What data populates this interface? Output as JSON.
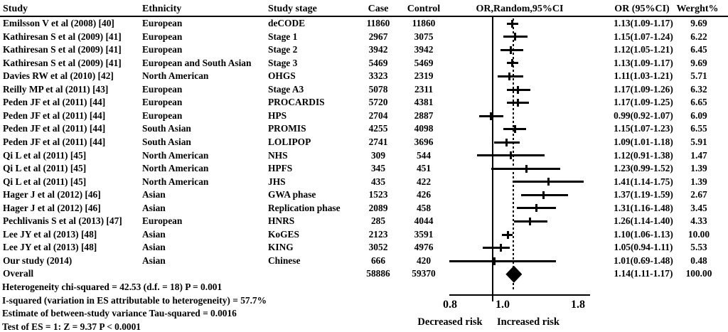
{
  "header": {
    "study": "Study",
    "ethnicity": "Ethnicity",
    "stage": "Study stage",
    "case": "Case",
    "control": "Control",
    "plot": "OR,Random,95%CI",
    "or": "OR (95%CI)",
    "weight": "Werght%"
  },
  "rows": [
    {
      "study": "Emilsson V et al (2008) [40]",
      "ethnicity": "European",
      "stage": "deCODE",
      "case": "11860",
      "control": "11860",
      "or": 1.13,
      "lo": 1.09,
      "hi": 1.17,
      "or_text": "1.13(1.09-1.17)",
      "weight": "9.69"
    },
    {
      "study": "Kathiresan S et al (2009) [41]",
      "ethnicity": "European",
      "stage": "Stage 1",
      "case": "2967",
      "control": "3075",
      "or": 1.15,
      "lo": 1.07,
      "hi": 1.24,
      "or_text": "1.15(1.07-1.24)",
      "weight": "6.22"
    },
    {
      "study": "Kathiresan S et al (2009) [41]",
      "ethnicity": "European",
      "stage": "Stage 2",
      "case": "3942",
      "control": "3942",
      "or": 1.12,
      "lo": 1.05,
      "hi": 1.21,
      "or_text": "1.12(1.05-1.21)",
      "weight": "6.45"
    },
    {
      "study": "Kathiresan S et al (2009) [41]",
      "ethnicity": "European and South Asian",
      "stage": "Stage 3",
      "case": "5469",
      "control": "5469",
      "or": 1.13,
      "lo": 1.09,
      "hi": 1.17,
      "or_text": "1.13(1.09-1.17)",
      "weight": "9.69"
    },
    {
      "study": "Davies RW et al (2010) [42]",
      "ethnicity": "North American",
      "stage": "OHGS",
      "case": "3323",
      "control": "2319",
      "or": 1.11,
      "lo": 1.03,
      "hi": 1.21,
      "or_text": "1.11(1.03-1.21)",
      "weight": "5.71"
    },
    {
      "study": "Reilly MP et al (2011) [43]",
      "ethnicity": "European",
      "stage": "Stage A3",
      "case": "5078",
      "control": "2311",
      "or": 1.17,
      "lo": 1.09,
      "hi": 1.26,
      "or_text": "1.17(1.09-1.26)",
      "weight": "6.32"
    },
    {
      "study": "Peden JF et al (2011) [44]",
      "ethnicity": "European",
      "stage": "PROCARDIS",
      "case": "5720",
      "control": "4381",
      "or": 1.17,
      "lo": 1.09,
      "hi": 1.25,
      "or_text": "1.17(1.09-1.25)",
      "weight": "6.65"
    },
    {
      "study": "Peden JF et al (2011) [44]",
      "ethnicity": "European",
      "stage": "HPS",
      "case": "2704",
      "control": "2887",
      "or": 0.99,
      "lo": 0.92,
      "hi": 1.07,
      "or_text": "0.99(0.92-1.07)",
      "weight": "6.09"
    },
    {
      "study": "Peden JF et al (2011) [44]",
      "ethnicity": "South Asian",
      "stage": "PROMIS",
      "case": "4255",
      "control": "4098",
      "or": 1.15,
      "lo": 1.07,
      "hi": 1.23,
      "or_text": "1.15(1.07-1.23)",
      "weight": "6.55"
    },
    {
      "study": "Peden JF et al (2011) [44]",
      "ethnicity": "South Asian",
      "stage": "LOLIPOP",
      "case": "2741",
      "control": "3696",
      "or": 1.09,
      "lo": 1.01,
      "hi": 1.18,
      "or_text": "1.09(1.01-1.18)",
      "weight": "5.91"
    },
    {
      "study": "Qi L et al (2011) [45]",
      "ethnicity": "North American",
      "stage": "NHS",
      "case": "309",
      "control": "544",
      "or": 1.12,
      "lo": 0.91,
      "hi": 1.38,
      "or_text": "1.12(0.91-1.38)",
      "weight": "1.47"
    },
    {
      "study": "Qi L et al (2011) [45]",
      "ethnicity": "North American",
      "stage": "HPFS",
      "case": "345",
      "control": "451",
      "or": 1.23,
      "lo": 0.99,
      "hi": 1.52,
      "or_text": "1.23(0.99-1.52)",
      "weight": "1.39"
    },
    {
      "study": "Qi L et al (2011) [45]",
      "ethnicity": "North American",
      "stage": "JHS",
      "case": "435",
      "control": "422",
      "or": 1.41,
      "lo": 1.14,
      "hi": 1.75,
      "or_text": "1.41(1.14-1.75)",
      "weight": "1.39"
    },
    {
      "study": "Hager J et al (2012) [46]",
      "ethnicity": "Asian",
      "stage": "GWA phase",
      "case": "1523",
      "control": "426",
      "or": 1.37,
      "lo": 1.19,
      "hi": 1.59,
      "or_text": "1.37(1.19-1.59)",
      "weight": "2.67"
    },
    {
      "study": "Hager J et al (2012) [46]",
      "ethnicity": "Asian",
      "stage": "Replication phase",
      "case": "2089",
      "control": "458",
      "or": 1.31,
      "lo": 1.16,
      "hi": 1.48,
      "or_text": "1.31(1.16-1.48)",
      "weight": "3.45"
    },
    {
      "study": "Pechlivanis S et al (2013) [47]",
      "ethnicity": "European",
      "stage": "HNRS",
      "case": "285",
      "control": "4044",
      "or": 1.26,
      "lo": 1.14,
      "hi": 1.4,
      "or_text": "1.26(1.14-1.40)",
      "weight": "4.33"
    },
    {
      "study": "Lee JY et al (2013) [48]",
      "ethnicity": "Asian",
      "stage": "KoGES",
      "case": "2123",
      "control": "3591",
      "or": 1.1,
      "lo": 1.06,
      "hi": 1.13,
      "or_text": "1.10(1.06-1.13)",
      "weight": "10.00"
    },
    {
      "study": "Lee JY et al (2013) [48]",
      "ethnicity": "Asian",
      "stage": "KING",
      "case": "3052",
      "control": "4976",
      "or": 1.05,
      "lo": 0.94,
      "hi": 1.11,
      "or_text": "1.05(0.94-1.11)",
      "weight": "5.53"
    },
    {
      "study": "Our study (2014)",
      "ethnicity": "Asian",
      "stage": "Chinese",
      "case": "666",
      "control": "420",
      "or": 1.01,
      "lo": 0.69,
      "hi": 1.48,
      "or_text": "1.01(0.69-1.48)",
      "weight": "0.48"
    }
  ],
  "overall": {
    "label": "Overall",
    "case": "58886",
    "control": "59370",
    "or": 1.14,
    "lo": 1.11,
    "hi": 1.17,
    "or_text": "1.14(1.11-1.17)",
    "weight": "100.00"
  },
  "footer": {
    "lines": [
      "Heterogeneity chi-squared = 42.53 (d.f. = 18) P = 0.001",
      "I-squared (variation in ES attributable to heterogeneity) = 57.7%",
      "Estimate of between-study variance Tau-squared = 0.0016",
      "Test of ES = 1: Z = 9.37 P < 0.0001"
    ]
  },
  "axis": {
    "tick_labels": [
      "0.8",
      "1.0",
      "1.8"
    ],
    "tick_values": [
      0.8,
      1.0,
      1.8
    ],
    "left_label": "Decreased risk",
    "right_label": "Increased risk"
  },
  "colors": {
    "ink": "#000000",
    "background": "#ffffff"
  },
  "chart_data": {
    "type": "scatter",
    "subtype": "forest_plot_meta_analysis",
    "title": "OR,Random,95%CI",
    "x_scale": "log",
    "x_axis_ticks": [
      0.8,
      1.0,
      1.8
    ],
    "reference_line": 1.0,
    "overall_dashed_line": 1.14,
    "xlabel_left": "Decreased risk",
    "xlabel_right": "Increased risk",
    "categories": [
      "deCODE",
      "Stage 1",
      "Stage 2",
      "Stage 3",
      "OHGS",
      "Stage A3",
      "PROCARDIS",
      "HPS",
      "PROMIS",
      "LOLIPOP",
      "NHS",
      "HPFS",
      "JHS",
      "GWA phase",
      "Replication phase",
      "HNRS",
      "KoGES",
      "KING",
      "Chinese"
    ],
    "series": [
      {
        "name": "OR",
        "values": [
          1.13,
          1.15,
          1.12,
          1.13,
          1.11,
          1.17,
          1.17,
          0.99,
          1.15,
          1.09,
          1.12,
          1.23,
          1.41,
          1.37,
          1.31,
          1.26,
          1.1,
          1.05,
          1.01
        ]
      },
      {
        "name": "CI_lower",
        "values": [
          1.09,
          1.07,
          1.05,
          1.09,
          1.03,
          1.09,
          1.09,
          0.92,
          1.07,
          1.01,
          0.91,
          0.99,
          1.14,
          1.19,
          1.16,
          1.14,
          1.06,
          0.94,
          0.69
        ]
      },
      {
        "name": "CI_upper",
        "values": [
          1.17,
          1.24,
          1.21,
          1.17,
          1.21,
          1.26,
          1.25,
          1.07,
          1.23,
          1.18,
          1.38,
          1.52,
          1.75,
          1.59,
          1.48,
          1.4,
          1.13,
          1.11,
          1.48
        ]
      },
      {
        "name": "Weight%",
        "values": [
          9.69,
          6.22,
          6.45,
          9.69,
          5.71,
          6.32,
          6.65,
          6.09,
          6.55,
          5.91,
          1.47,
          1.39,
          1.39,
          2.67,
          3.45,
          4.33,
          10.0,
          5.53,
          0.48
        ]
      }
    ],
    "overall": {
      "or": 1.14,
      "ci_lower": 1.11,
      "ci_upper": 1.17,
      "weight": 100.0,
      "marker": "diamond"
    }
  }
}
